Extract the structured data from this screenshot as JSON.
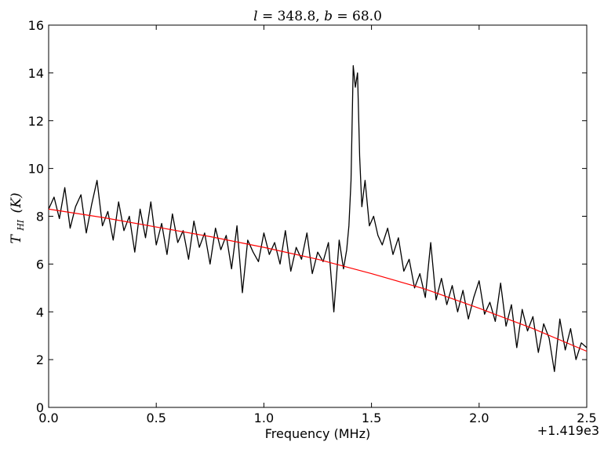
{
  "chart_data": {
    "type": "line",
    "title": "l = 348.8, b = 68.0",
    "title_parts": {
      "l_symbol": "l",
      "l_value": "= 348.8,",
      "b_symbol": "b",
      "b_value": "= 68.0"
    },
    "xlabel": "Frequency (MHz)",
    "ylabel": "T_HI (K)",
    "ylabel_parts": {
      "main": "T",
      "sub": "HI",
      "rest": "(K)"
    },
    "x_offset_label": "+1.419e3",
    "xlim": [
      0.0,
      2.5
    ],
    "ylim": [
      0,
      16
    ],
    "x_ticks": [
      "0.0",
      "0.5",
      "1.0",
      "1.5",
      "2.0",
      "2.5"
    ],
    "y_ticks": [
      "0",
      "2",
      "4",
      "6",
      "8",
      "10",
      "12",
      "14",
      "16"
    ],
    "grid": false,
    "series": [
      {
        "color": "#000000",
        "x": [
          0.0,
          0.025,
          0.05,
          0.075,
          0.1,
          0.125,
          0.15,
          0.175,
          0.2,
          0.225,
          0.25,
          0.275,
          0.3,
          0.325,
          0.35,
          0.375,
          0.4,
          0.425,
          0.45,
          0.475,
          0.5,
          0.525,
          0.55,
          0.575,
          0.6,
          0.625,
          0.65,
          0.675,
          0.7,
          0.725,
          0.75,
          0.775,
          0.8,
          0.825,
          0.85,
          0.875,
          0.9,
          0.925,
          0.95,
          0.975,
          1.0,
          1.025,
          1.05,
          1.075,
          1.1,
          1.125,
          1.15,
          1.175,
          1.2,
          1.225,
          1.25,
          1.275,
          1.3,
          1.325,
          1.35,
          1.37,
          1.385,
          1.395,
          1.405,
          1.415,
          1.425,
          1.435,
          1.445,
          1.455,
          1.47,
          1.49,
          1.51,
          1.53,
          1.55,
          1.575,
          1.6,
          1.625,
          1.65,
          1.675,
          1.7,
          1.725,
          1.75,
          1.775,
          1.8,
          1.825,
          1.85,
          1.875,
          1.9,
          1.925,
          1.95,
          1.975,
          2.0,
          2.025,
          2.05,
          2.075,
          2.1,
          2.125,
          2.15,
          2.175,
          2.2,
          2.225,
          2.25,
          2.275,
          2.3,
          2.325,
          2.35,
          2.375,
          2.4,
          2.425,
          2.45,
          2.475,
          2.5
        ],
        "values": [
          8.3,
          8.8,
          7.9,
          9.2,
          7.5,
          8.4,
          8.9,
          7.3,
          8.5,
          9.5,
          7.6,
          8.2,
          7.0,
          8.6,
          7.4,
          8.0,
          6.5,
          8.3,
          7.1,
          8.6,
          6.8,
          7.7,
          6.4,
          8.1,
          6.9,
          7.4,
          6.2,
          7.8,
          6.7,
          7.3,
          6.0,
          7.5,
          6.6,
          7.2,
          5.8,
          7.6,
          4.8,
          7.0,
          6.5,
          6.1,
          7.3,
          6.4,
          6.9,
          6.0,
          7.4,
          5.7,
          6.7,
          6.2,
          7.3,
          5.6,
          6.5,
          6.1,
          6.9,
          4.0,
          7.0,
          5.8,
          6.6,
          7.6,
          9.5,
          14.3,
          13.4,
          14.0,
          10.5,
          8.4,
          9.5,
          7.6,
          8.0,
          7.2,
          6.8,
          7.5,
          6.4,
          7.1,
          5.7,
          6.2,
          5.0,
          5.6,
          4.6,
          6.9,
          4.5,
          5.4,
          4.3,
          5.1,
          4.0,
          4.9,
          3.7,
          4.6,
          5.3,
          3.9,
          4.4,
          3.6,
          5.2,
          3.4,
          4.3,
          2.5,
          4.1,
          3.2,
          3.8,
          2.3,
          3.5,
          2.9,
          1.5,
          3.7,
          2.4,
          3.3,
          2.0,
          2.7,
          2.5
        ]
      },
      {
        "color": "#ff0000",
        "x": [
          0.0,
          0.25,
          0.5,
          0.75,
          1.0,
          1.25,
          1.5,
          1.75,
          2.0,
          2.25,
          2.5
        ],
        "values": [
          8.3,
          7.95,
          7.55,
          7.15,
          6.7,
          6.2,
          5.6,
          4.95,
          4.15,
          3.3,
          2.35
        ]
      }
    ]
  }
}
